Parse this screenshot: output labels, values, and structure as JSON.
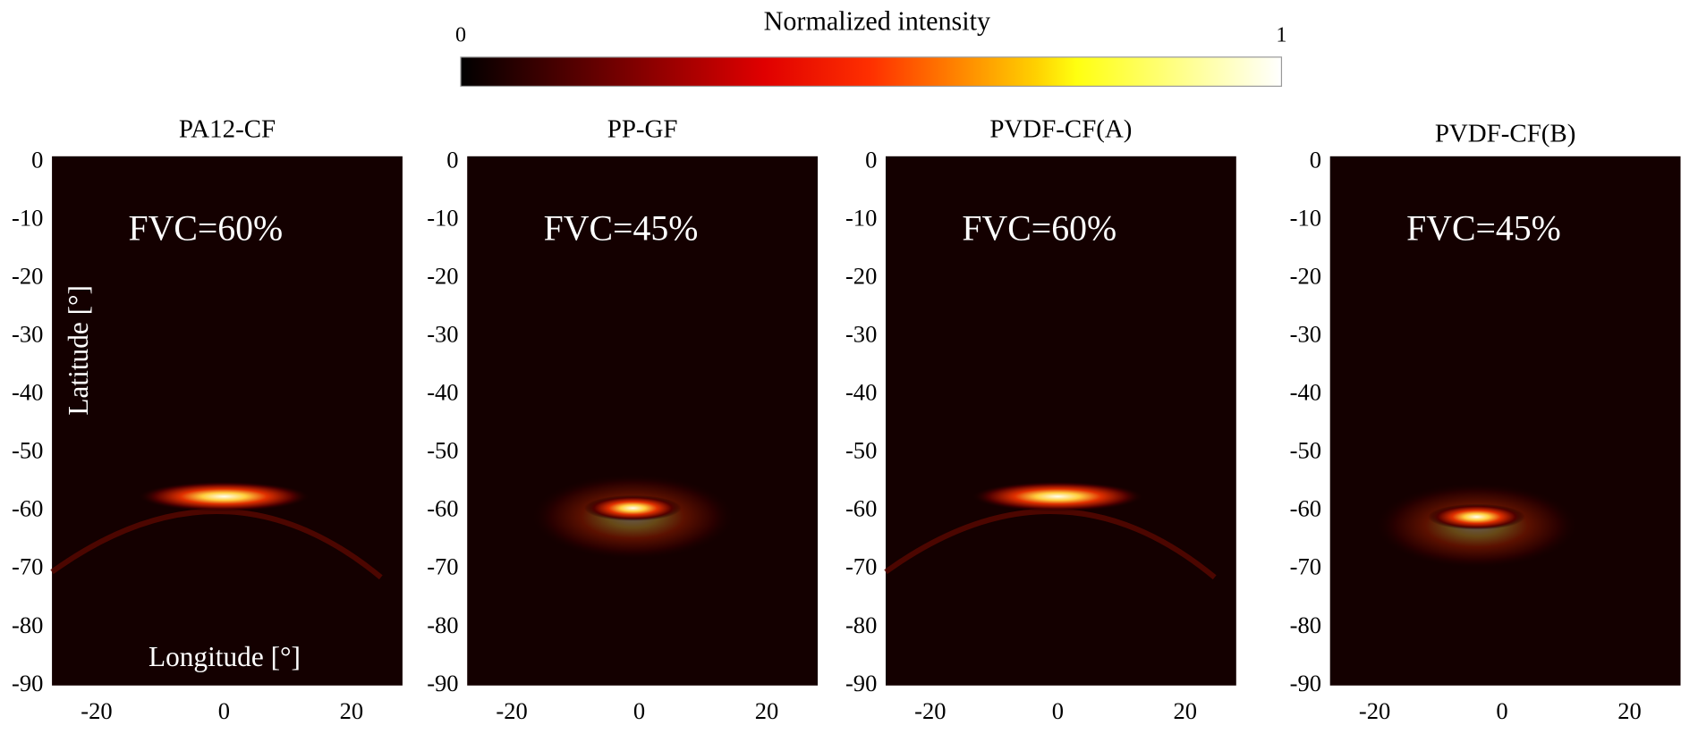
{
  "colorbar": {
    "label": "Normalized intensity",
    "lim": [
      0,
      1
    ],
    "ticks": [
      0,
      1
    ]
  },
  "chart_data": [
    {
      "type": "heatmap",
      "title": "PA12-CF",
      "annotation": "FVC=60%",
      "y_label": "Latitude [°]",
      "x_label": "Longitude [°]",
      "xlim": [
        -27,
        28
      ],
      "ylim": [
        1,
        -90
      ],
      "xticks": [
        -20,
        0,
        20
      ],
      "yticks": [
        0,
        -10,
        -20,
        -30,
        -40,
        -50,
        -60,
        -70,
        -80,
        -90
      ],
      "peak_x": 0,
      "peak_y": -57.5,
      "arc": true
    },
    {
      "type": "heatmap",
      "title": "PP-GF",
      "annotation": "FVC=45%",
      "xlim": [
        -27,
        28
      ],
      "ylim": [
        1,
        -90
      ],
      "xticks": [
        -20,
        0,
        20
      ],
      "yticks": [
        0,
        -10,
        -20,
        -30,
        -40,
        -50,
        -60,
        -70,
        -80,
        -90
      ],
      "peak_x": -1,
      "peak_y": -59.5,
      "arc": false
    },
    {
      "type": "heatmap",
      "title": "PVDF-CF(A)",
      "annotation": "FVC=60%",
      "xlim": [
        -27,
        28
      ],
      "ylim": [
        1,
        -90
      ],
      "xticks": [
        -20,
        0,
        20
      ],
      "yticks": [
        0,
        -10,
        -20,
        -30,
        -40,
        -50,
        -60,
        -70,
        -80,
        -90
      ],
      "peak_x": 0,
      "peak_y": -57.5,
      "arc": true
    },
    {
      "type": "heatmap",
      "title": "PVDF-CF(B)",
      "annotation": "FVC=45%",
      "xlim": [
        -27,
        28
      ],
      "ylim": [
        1,
        -90
      ],
      "xticks": [
        -20,
        0,
        20
      ],
      "yticks": [
        0,
        -10,
        -20,
        -30,
        -40,
        -50,
        -60,
        -70,
        -80,
        -90
      ],
      "peak_x": -4,
      "peak_y": -61,
      "arc": false
    }
  ]
}
